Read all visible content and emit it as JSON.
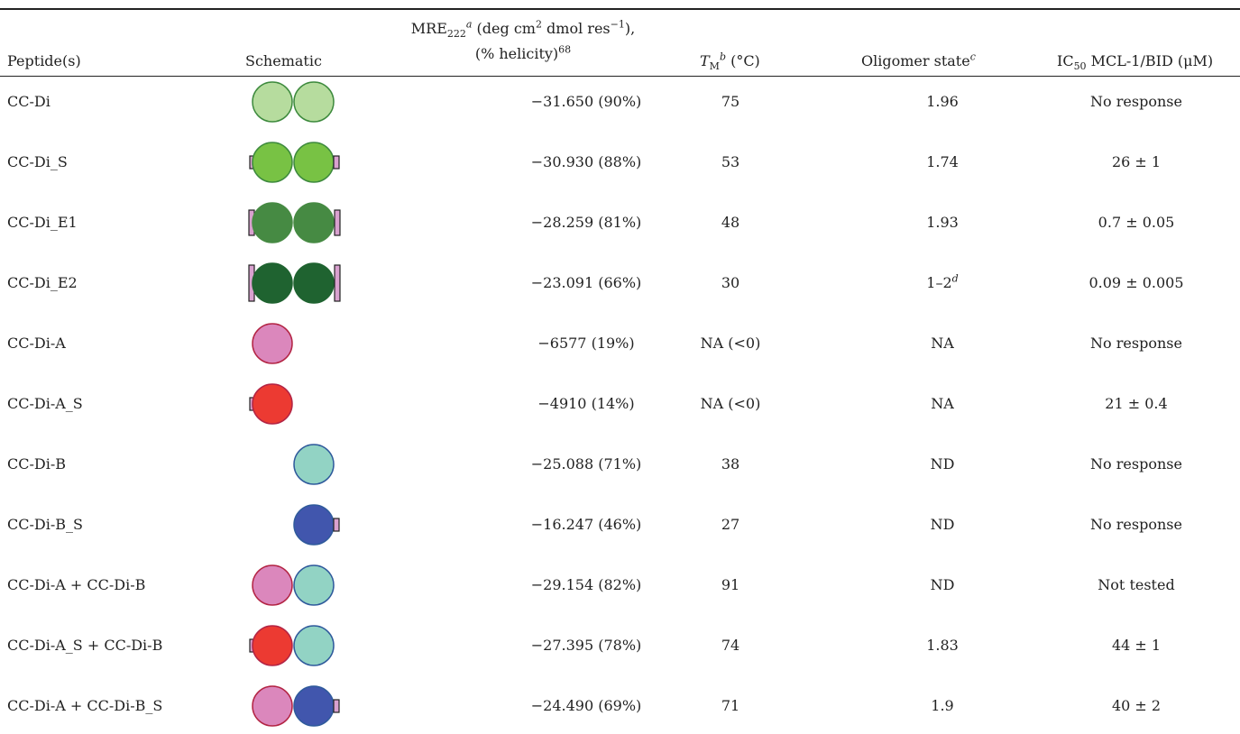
{
  "headers": {
    "peptides": "Peptide(s)",
    "schematic": "Schematic",
    "mre_line1_a": "MRE",
    "mre_sub": "222",
    "mre_sup_a": "a",
    "mre_line1_b": " (deg cm",
    "mre_sup_2": "2",
    "mre_line1_c": " dmol res",
    "mre_sup_neg1": "−1",
    "mre_line1_d": "),",
    "mre_line2": "(% helicity)",
    "mre_line2_sup": "68",
    "tm_main": "T",
    "tm_sub": "M",
    "tm_sup": "b",
    "tm_unit": " (°C)",
    "olig": "Oligomer state",
    "olig_sup": "c",
    "ic_a": "IC",
    "ic_sub": "50",
    "ic_b": " MCL-1/BID (μM)"
  },
  "colors": {
    "cc_di_fill": "#b6dc9e",
    "cc_di_stroke": "#3d8a3d",
    "cc_di_s_fill": "#78c244",
    "cc_di_e1_fill": "#468a43",
    "cc_di_e2_fill": "#1f6330",
    "a_fill": "#db87bc",
    "a_stroke": "#b32444",
    "a_s_fill": "#ec3a32",
    "b_fill": "#92d3c4",
    "b_stroke": "#2f5a9c",
    "b_s_fill": "#4156ad",
    "tag_fill": "#d9a1cf",
    "tag_stroke": "#222222"
  },
  "rows": [
    {
      "peptide": "CC-Di",
      "mre": "−31.650 (90%)",
      "tm": "75",
      "olig": "1.96",
      "olig_sup": "",
      "ic": "No response"
    },
    {
      "peptide": "CC-Di_S",
      "mre": "−30.930 (88%)",
      "tm": "53",
      "olig": "1.74",
      "olig_sup": "",
      "ic": "26 ± 1"
    },
    {
      "peptide": "CC-Di_E1",
      "mre": "−28.259 (81%)",
      "tm": "48",
      "olig": "1.93",
      "olig_sup": "",
      "ic": "0.7 ± 0.05"
    },
    {
      "peptide": "CC-Di_E2",
      "mre": "−23.091 (66%)",
      "tm": "30",
      "olig": "1–2",
      "olig_sup": "d",
      "ic": "0.09 ± 0.005"
    },
    {
      "peptide": "CC-Di-A",
      "mre": "−6577 (19%)",
      "tm": "NA (<0)",
      "olig": "NA",
      "olig_sup": "",
      "ic": "No response"
    },
    {
      "peptide": "CC-Di-A_S",
      "mre": "−4910 (14%)",
      "tm": "NA (<0)",
      "olig": "NA",
      "olig_sup": "",
      "ic": "21 ± 0.4"
    },
    {
      "peptide": "CC-Di-B",
      "mre": "−25.088 (71%)",
      "tm": "38",
      "olig": "ND",
      "olig_sup": "",
      "ic": "No response"
    },
    {
      "peptide": "CC-Di-B_S",
      "mre": "−16.247 (46%)",
      "tm": "27",
      "olig": "ND",
      "olig_sup": "",
      "ic": "No response"
    },
    {
      "peptide": "CC-Di-A + CC-Di-B",
      "mre": "−29.154 (82%)",
      "tm": "91",
      "olig": "ND",
      "olig_sup": "",
      "ic": "Not tested"
    },
    {
      "peptide": "CC-Di-A_S + CC-Di-B",
      "mre": "−27.395 (78%)",
      "tm": "74",
      "olig": "1.83",
      "olig_sup": "",
      "ic": "44 ± 1"
    },
    {
      "peptide": "CC-Di-A + CC-Di-B_S",
      "mre": "−24.490 (69%)",
      "tm": "71",
      "olig": "1.9",
      "olig_sup": "",
      "ic": "40 ± 2"
    }
  ]
}
